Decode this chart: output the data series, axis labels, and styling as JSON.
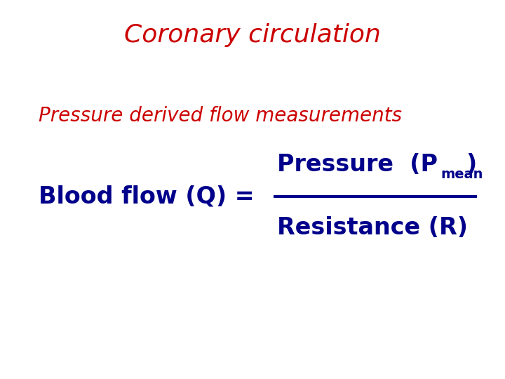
{
  "title": "Coronary circulation",
  "title_color": "#cc0000",
  "title_fontsize": 26,
  "subtitle": "Pressure derived flow measurements",
  "subtitle_color": "#cc0000",
  "subtitle_fontsize": 20,
  "blood_flow_label": "Blood flow (Q) =",
  "pressure_main": "Pressure  (P",
  "pressure_sub": "mean",
  "pressure_close": ")",
  "resistance_label": "Resistance (R)",
  "formula_color": "#00008B",
  "formula_fontsize": 24,
  "formula_weight": "bold",
  "line_color": "#00008B",
  "line_width": 3,
  "bg_color": "#ffffff",
  "fig_width": 7.2,
  "fig_height": 5.4,
  "dpi": 100
}
